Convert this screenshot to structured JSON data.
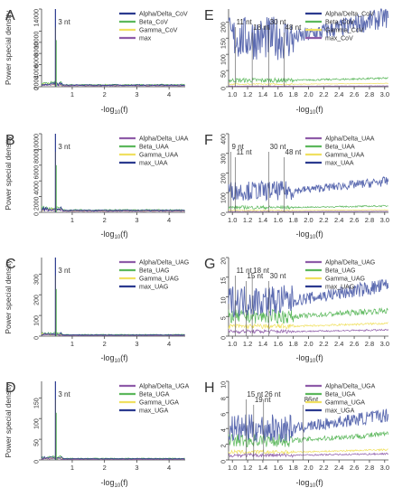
{
  "figure": {
    "ylabel": "Power special density",
    "xlabel_main": "-log",
    "xlabel_sub": "10",
    "xlabel_tail": "(f)"
  },
  "chart_data": [
    {
      "panel": "A",
      "type": "line",
      "legend": [
        "Alpha/Delta_CoV",
        "Beta_CoV",
        "Gamma_CoV",
        "max"
      ],
      "colors": [
        "#2b3a8f",
        "#5cb85c",
        "#f0e060",
        "#8e5ba8"
      ],
      "xticks": [
        1,
        2,
        3,
        4
      ],
      "xlim": [
        0.05,
        4.5
      ],
      "yticks": [
        0,
        2000,
        4000,
        6000,
        8000,
        10000,
        14000
      ],
      "ylim": [
        0,
        14000
      ],
      "xlabel": "-log10(f)",
      "ylabel": "Power special density",
      "annotations": [
        {
          "text": "3 nt",
          "x": 0.48
        }
      ],
      "peak": {
        "x": 0.48,
        "y": 14000
      },
      "baseline": 300
    },
    {
      "panel": "E",
      "type": "line",
      "legend": [
        "Alpha/Delta_CoV",
        "Beta_CoV",
        "Gamma_CoV",
        "max_CoV"
      ],
      "colors": [
        "#2b3a8f",
        "#5cb85c",
        "#f0e060",
        "#8e5ba8"
      ],
      "xticks": [
        1.0,
        1.2,
        1.4,
        1.6,
        1.8,
        2.0,
        2.2,
        2.4,
        2.6,
        2.8,
        3.0
      ],
      "xlim": [
        0.95,
        3.05
      ],
      "yticks": [
        0,
        50,
        100,
        150,
        200
      ],
      "ylim": [
        0,
        240
      ],
      "xlabel": "-log10(f)",
      "ylabel": "",
      "annotations": [
        {
          "text": "11 nt",
          "x": 1.04
        },
        {
          "text": "18 nt",
          "x": 1.26
        },
        {
          "text": "30 nt",
          "x": 1.48
        },
        {
          "text": "48 nt",
          "x": 1.68
        }
      ],
      "series_levels": {
        "max": 150,
        "green": 20,
        "yellow": 8,
        "blue": 2
      }
    },
    {
      "panel": "B",
      "type": "line",
      "legend": [
        "Alpha/Delta_UAA",
        "Beta_UAA",
        "Gamma_UAA",
        "max_UAA"
      ],
      "colors": [
        "#8e5ba8",
        "#5cb85c",
        "#f0e060",
        "#2b3a8f"
      ],
      "xticks": [
        1,
        2,
        3,
        4
      ],
      "xlim": [
        0.05,
        4.5
      ],
      "yticks": [
        0,
        2000,
        4000,
        6000,
        8000,
        10000
      ],
      "ylim": [
        0,
        10000
      ],
      "xlabel": "-log10(f)",
      "ylabel": "Power special density",
      "annotations": [
        {
          "text": "3 nt",
          "x": 0.48
        }
      ],
      "peak": {
        "x": 0.48,
        "y": 10000
      },
      "baseline": 250
    },
    {
      "panel": "F",
      "type": "line",
      "legend": [
        "Alpha/Delta_UAA",
        "Beta_UAA",
        "Gamma_UAA",
        "max_UAA"
      ],
      "colors": [
        "#8e5ba8",
        "#5cb85c",
        "#f0e060",
        "#2b3a8f"
      ],
      "xticks": [
        1.0,
        1.2,
        1.4,
        1.6,
        1.8,
        2.0,
        2.2,
        2.4,
        2.6,
        2.8,
        3.0
      ],
      "xlim": [
        0.95,
        3.05
      ],
      "yticks": [
        0,
        100,
        200,
        300,
        400
      ],
      "ylim": [
        0,
        400
      ],
      "xlabel": "-log10(f)",
      "ylabel": "",
      "annotations": [
        {
          "text": "9 nt",
          "x": 0.98
        },
        {
          "text": "11 nt",
          "x": 1.04
        },
        {
          "text": "30 nt",
          "x": 1.48
        },
        {
          "text": "48 nt",
          "x": 1.68
        }
      ],
      "series_levels": {
        "max": 110,
        "green": 25,
        "yellow": 10,
        "blue": 4
      }
    },
    {
      "panel": "C",
      "type": "line",
      "legend": [
        "Alpha/Delta_UAG",
        "Beta_UAG",
        "Gamma_UAG",
        "max_UAG"
      ],
      "colors": [
        "#8e5ba8",
        "#5cb85c",
        "#f0e060",
        "#2b3a8f"
      ],
      "xticks": [
        1,
        2,
        3,
        4
      ],
      "xlim": [
        0.05,
        4.5
      ],
      "yticks": [
        0,
        100,
        200,
        300
      ],
      "ylim": [
        0,
        380
      ],
      "xlabel": "-log10(f)",
      "ylabel": "Power special density",
      "annotations": [
        {
          "text": "3 nt",
          "x": 0.48
        }
      ],
      "peak": {
        "x": 0.48,
        "y": 380
      },
      "baseline": 6
    },
    {
      "panel": "G",
      "type": "line",
      "legend": [
        "Alpha/Delta_UAG",
        "Beta_UAG",
        "Gamma_UAG",
        "max_UAG"
      ],
      "colors": [
        "#8e5ba8",
        "#5cb85c",
        "#f0e060",
        "#2b3a8f"
      ],
      "xticks": [
        1.0,
        1.2,
        1.4,
        1.6,
        1.8,
        2.0,
        2.2,
        2.4,
        2.6,
        2.8,
        3.0
      ],
      "xlim": [
        0.95,
        3.05
      ],
      "yticks": [
        0,
        5,
        10,
        15,
        20
      ],
      "ylim": [
        0,
        20
      ],
      "xlabel": "-log10(f)",
      "ylabel": "",
      "annotations": [
        {
          "text": "11 nt",
          "x": 1.04
        },
        {
          "text": "15 nt",
          "x": 1.18
        },
        {
          "text": "18 nt",
          "x": 1.26
        },
        {
          "text": "30 nt",
          "x": 1.48
        }
      ],
      "series_levels": {
        "max": 9,
        "green": 5,
        "yellow": 2.5,
        "blue": 1.2
      }
    },
    {
      "panel": "D",
      "type": "line",
      "legend": [
        "Alpha/Delta_UGA",
        "Beta_UGA",
        "Gamma_UGA",
        "max_UGA"
      ],
      "colors": [
        "#8e5ba8",
        "#5cb85c",
        "#f0e060",
        "#2b3a8f"
      ],
      "xticks": [
        1,
        2,
        3,
        4
      ],
      "xlim": [
        0.05,
        4.5
      ],
      "yticks": [
        0,
        50,
        100,
        150
      ],
      "ylim": [
        0,
        190
      ],
      "xlabel": "-log10(f)",
      "ylabel": "Power special density",
      "annotations": [
        {
          "text": "3 nt",
          "x": 0.48
        }
      ],
      "peak": {
        "x": 0.48,
        "y": 190
      },
      "baseline": 3
    },
    {
      "panel": "H",
      "type": "line",
      "legend": [
        "Alpha/Delta_UGA",
        "Beta_UGA",
        "Gamma_UGA",
        "max_UGA"
      ],
      "colors": [
        "#8e5ba8",
        "#5cb85c",
        "#f0e060",
        "#2b3a8f"
      ],
      "xticks": [
        1.0,
        1.2,
        1.4,
        1.6,
        1.8,
        2.0,
        2.2,
        2.4,
        2.6,
        2.8,
        3.0
      ],
      "xlim": [
        0.95,
        3.05
      ],
      "yticks": [
        0,
        2,
        4,
        6,
        8,
        10
      ],
      "ylim": [
        0,
        10
      ],
      "xlabel": "-log10(f)",
      "ylabel": "",
      "annotations": [
        {
          "text": "15 nt",
          "x": 1.18
        },
        {
          "text": "19 nt",
          "x": 1.28
        },
        {
          "text": "26 nt",
          "x": 1.41
        },
        {
          "text": "86nt",
          "x": 1.93
        }
      ],
      "series_levels": {
        "max": 4,
        "green": 2.5,
        "yellow": 1,
        "blue": 0.6
      }
    }
  ]
}
